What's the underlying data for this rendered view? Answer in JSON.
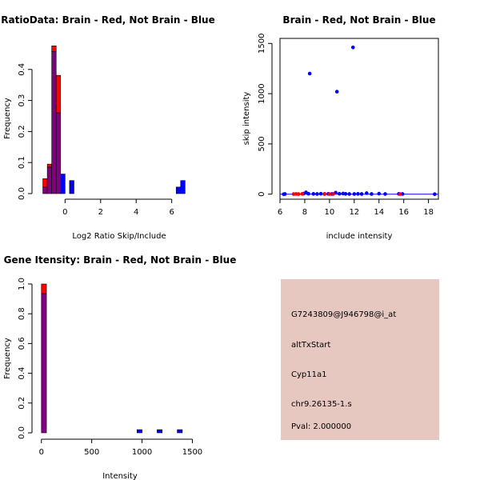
{
  "colors": {
    "brain": "#ff0000",
    "not_brain": "#0000ff",
    "overlap": "#800080",
    "panel_bg": "#e6c8c0",
    "pval": "#b00000"
  },
  "chart_data": [
    {
      "id": "ratio_hist",
      "type": "bar",
      "title": "RatioData: Brain - Red, Not Brain - Blue",
      "xlabel": "Log2 Ratio Skip/Include",
      "ylabel": "Frequency",
      "xlim": [
        -1.5,
        7.5
      ],
      "ylim": [
        0,
        0.5
      ],
      "xticks": [
        0,
        2,
        4,
        6
      ],
      "yticks": [
        0.0,
        0.1,
        0.2,
        0.3,
        0.4
      ],
      "bin_edges": [
        -1.25,
        -1.0,
        -0.75,
        -0.5,
        -0.25,
        0.0,
        0.25,
        0.5,
        0.75,
        1.0,
        1.25,
        1.5,
        1.75,
        2.0,
        2.25,
        2.5,
        2.75,
        3.0,
        3.25,
        3.5,
        3.75,
        4.0,
        4.25,
        4.5,
        4.75,
        5.0,
        5.25,
        5.5,
        5.75,
        6.0,
        6.25,
        6.5,
        6.75,
        7.0,
        7.25
      ],
      "series": [
        {
          "name": "Brain",
          "color": "brain",
          "values": [
            0.048,
            0.095,
            0.476,
            0.381,
            0,
            0,
            0,
            0,
            0,
            0,
            0,
            0,
            0,
            0,
            0,
            0,
            0,
            0,
            0,
            0,
            0,
            0,
            0,
            0,
            0,
            0,
            0,
            0,
            0,
            0,
            0,
            0,
            0,
            0
          ]
        },
        {
          "name": "Not Brain",
          "color": "not_brain",
          "values": [
            0.021,
            0.085,
            0.458,
            0.26,
            0.063,
            0,
            0.042,
            0,
            0,
            0,
            0,
            0,
            0,
            0,
            0,
            0,
            0,
            0,
            0,
            0,
            0,
            0,
            0,
            0,
            0,
            0,
            0,
            0,
            0,
            0,
            0.021,
            0.042,
            0,
            0
          ]
        }
      ]
    },
    {
      "id": "scatter",
      "type": "scatter",
      "title": "Brain - Red, Not Brain - Blue",
      "xlabel": "include intensity",
      "ylabel": "skip intensity",
      "xlim": [
        6.0,
        18.8
      ],
      "ylim": [
        -50,
        1550
      ],
      "xticks": [
        6,
        8,
        10,
        12,
        14,
        16,
        18
      ],
      "yticks": [
        0,
        500,
        1000,
        1500
      ],
      "series": [
        {
          "name": "Not Brain",
          "color": "not_brain",
          "points": [
            [
              6.3,
              0
            ],
            [
              6.4,
              2
            ],
            [
              7.9,
              5
            ],
            [
              8.1,
              18
            ],
            [
              8.3,
              4
            ],
            [
              8.4,
              1200
            ],
            [
              8.7,
              3
            ],
            [
              9.0,
              2
            ],
            [
              9.3,
              4
            ],
            [
              9.6,
              2
            ],
            [
              9.9,
              3
            ],
            [
              10.2,
              2
            ],
            [
              10.5,
              15
            ],
            [
              10.6,
              1020
            ],
            [
              10.8,
              4
            ],
            [
              11.1,
              6
            ],
            [
              11.3,
              3
            ],
            [
              11.6,
              2
            ],
            [
              11.9,
              1460
            ],
            [
              12.0,
              2
            ],
            [
              12.3,
              3
            ],
            [
              12.6,
              2
            ],
            [
              13.0,
              10
            ],
            [
              13.4,
              2
            ],
            [
              14.0,
              5
            ],
            [
              14.5,
              2
            ],
            [
              15.6,
              3
            ],
            [
              15.9,
              2
            ],
            [
              18.5,
              0
            ]
          ]
        },
        {
          "name": "Brain",
          "color": "brain",
          "points": [
            [
              7.1,
              1
            ],
            [
              7.3,
              2
            ],
            [
              7.5,
              1
            ],
            [
              7.8,
              3
            ],
            [
              9.6,
              2
            ],
            [
              10.0,
              1
            ],
            [
              10.3,
              2
            ],
            [
              15.7,
              1
            ]
          ]
        }
      ],
      "reference_line": 0
    },
    {
      "id": "gene_hist",
      "type": "bar",
      "title": "Gene Itensity: Brain - Red, Not Brain - Blue",
      "xlabel": "Intensity",
      "ylabel": "Frequency",
      "xlim": [
        -30,
        1560
      ],
      "ylim": [
        0,
        1.0
      ],
      "xticks": [
        0,
        500,
        1000,
        1500
      ],
      "yticks": [
        0.0,
        0.2,
        0.4,
        0.6,
        0.8,
        1.0
      ],
      "bin_edges": [
        0,
        50,
        100,
        150,
        200,
        250,
        300,
        350,
        400,
        450,
        500,
        550,
        600,
        650,
        700,
        750,
        800,
        850,
        900,
        950,
        1000,
        1050,
        1100,
        1150,
        1200,
        1250,
        1300,
        1350,
        1400,
        1450,
        1500
      ],
      "series": [
        {
          "name": "Brain",
          "color": "brain",
          "values": [
            1.0,
            0,
            0,
            0,
            0,
            0,
            0,
            0,
            0,
            0,
            0,
            0,
            0,
            0,
            0,
            0,
            0,
            0,
            0,
            0,
            0,
            0,
            0,
            0,
            0,
            0,
            0,
            0,
            0,
            0
          ]
        },
        {
          "name": "Not Brain",
          "color": "not_brain",
          "values": [
            0.935,
            0,
            0,
            0,
            0,
            0,
            0,
            0,
            0,
            0,
            0,
            0,
            0,
            0,
            0,
            0,
            0,
            0,
            0,
            0.021,
            0,
            0,
            0,
            0.021,
            0,
            0,
            0,
            0.021,
            0,
            0
          ]
        }
      ]
    }
  ],
  "info": {
    "probe_id": "G7243809@J946798@i_at",
    "event_type": "altTxStart",
    "gene": "Cyp11a1",
    "location": "chr9.26135-1.s",
    "pval": "Pval: 2.000000"
  }
}
